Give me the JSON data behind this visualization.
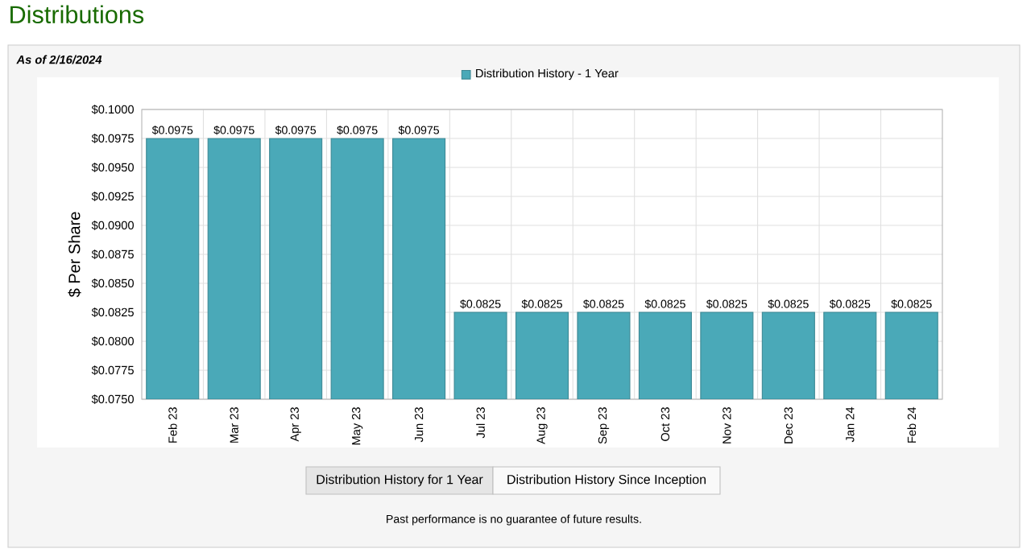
{
  "chart_data": {
    "type": "bar",
    "title": "Distributions",
    "subtitle": "As of 2/16/2024",
    "ylabel": "$ Per Share",
    "categories": [
      "Feb 23",
      "Mar 23",
      "Apr 23",
      "May 23",
      "Jun 23",
      "Jul 23",
      "Aug 23",
      "Sep 23",
      "Oct 23",
      "Nov 23",
      "Dec 23",
      "Jan 24",
      "Feb 24"
    ],
    "series": [
      {
        "name": "Distribution History - 1 Year",
        "color": "#4aa9b8",
        "values": [
          0.0975,
          0.0975,
          0.0975,
          0.0975,
          0.0975,
          0.0825,
          0.0825,
          0.0825,
          0.0825,
          0.0825,
          0.0825,
          0.0825,
          0.0825
        ],
        "value_labels": [
          "$0.0975",
          "$0.0975",
          "$0.0975",
          "$0.0975",
          "$0.0975",
          "$0.0825",
          "$0.0825",
          "$0.0825",
          "$0.0825",
          "$0.0825",
          "$0.0825",
          "$0.0825",
          "$0.0825"
        ]
      }
    ],
    "ylim": [
      0.075,
      0.1
    ],
    "yticks": [
      {
        "value": 0.075,
        "label": "$0.0750"
      },
      {
        "value": 0.0775,
        "label": "$0.0775"
      },
      {
        "value": 0.08,
        "label": "$0.0800"
      },
      {
        "value": 0.0825,
        "label": "$0.0825"
      },
      {
        "value": 0.085,
        "label": "$0.0850"
      },
      {
        "value": 0.0875,
        "label": "$0.0875"
      },
      {
        "value": 0.09,
        "label": "$0.0900"
      },
      {
        "value": 0.0925,
        "label": "$0.0925"
      },
      {
        "value": 0.095,
        "label": "$0.0950"
      },
      {
        "value": 0.0975,
        "label": "$0.0975"
      },
      {
        "value": 0.1,
        "label": "$0.1000"
      }
    ],
    "grid": true,
    "legend": "top",
    "annotations": [
      "Distribution History for 1 Year",
      "Distribution History Since Inception",
      "Past performance is no guarantee of future results."
    ]
  }
}
